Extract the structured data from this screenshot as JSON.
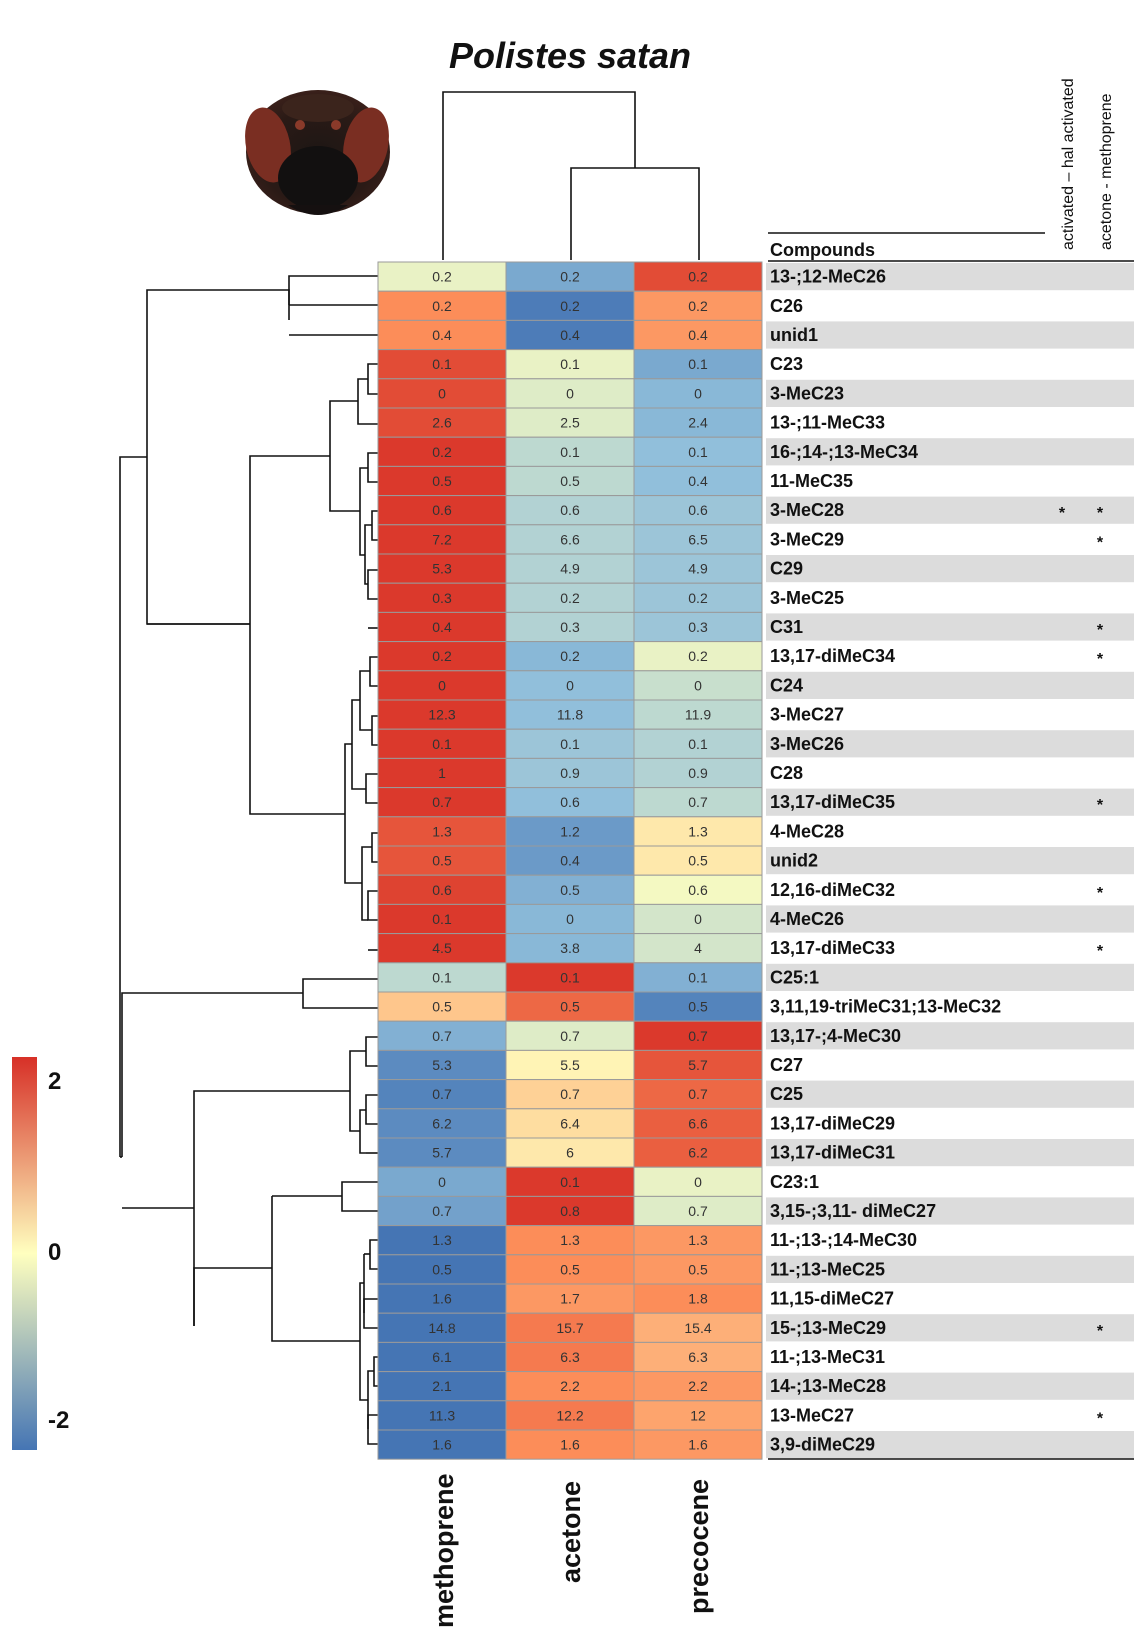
{
  "title": "Polistes satan",
  "compounds_header": "Compounds",
  "significance_headers": [
    "activated – hal activated",
    "acetone - methoprene"
  ],
  "legend": {
    "max_label": "2",
    "mid_label": "0",
    "min_label": "-2",
    "high_color": "#d73027",
    "mid_color": "#ffffbf",
    "low_color": "#4575b4"
  },
  "image": {
    "icon": "wasp-head-icon"
  },
  "chart_data": {
    "type": "heatmap",
    "title": "Polistes satan",
    "columns": [
      "methoprene",
      "acetone",
      "precocene"
    ],
    "row_header": "Compounds",
    "color_scale": {
      "min": -2,
      "max": 2,
      "colors": [
        "#4575b4",
        "#ffffbf",
        "#d73027"
      ]
    },
    "rows": [
      {
        "compound": "13-;12-MeC26",
        "values": [
          "0.2",
          "0.2",
          "0.2"
        ],
        "z": [
          -0.2,
          -1.3,
          1.7
        ],
        "sig": [
          "",
          ""
        ]
      },
      {
        "compound": "C26",
        "values": [
          "0.2",
          "0.2",
          "0.2"
        ],
        "z": [
          1.0,
          -1.9,
          0.9
        ],
        "sig": [
          "",
          ""
        ]
      },
      {
        "compound": "unid1",
        "values": [
          "0.4",
          "0.4",
          "0.4"
        ],
        "z": [
          1.0,
          -1.9,
          0.9
        ],
        "sig": [
          "",
          ""
        ]
      },
      {
        "compound": "C23",
        "values": [
          "0.1",
          "0.1",
          "0.1"
        ],
        "z": [
          1.7,
          -0.2,
          -1.3
        ],
        "sig": [
          "",
          ""
        ]
      },
      {
        "compound": "3-MeC23",
        "values": [
          "0",
          "0",
          "0"
        ],
        "z": [
          1.7,
          -0.3,
          -1.1
        ],
        "sig": [
          "",
          ""
        ]
      },
      {
        "compound": "13-;11-MeC33",
        "values": [
          "2.6",
          "2.5",
          "2.4"
        ],
        "z": [
          1.7,
          -0.3,
          -1.1
        ],
        "sig": [
          "",
          ""
        ]
      },
      {
        "compound": "16-;14-;13-MeC34",
        "values": [
          "0.2",
          "0.1",
          "0.1"
        ],
        "z": [
          1.9,
          -0.6,
          -1.0
        ],
        "sig": [
          "",
          ""
        ]
      },
      {
        "compound": "11-MeC35",
        "values": [
          "0.5",
          "0.5",
          "0.4"
        ],
        "z": [
          1.9,
          -0.6,
          -1.0
        ],
        "sig": [
          "",
          ""
        ]
      },
      {
        "compound": "3-MeC28",
        "values": [
          "0.6",
          "0.6",
          "0.6"
        ],
        "z": [
          1.9,
          -0.7,
          -0.9
        ],
        "sig": [
          "*",
          "*"
        ]
      },
      {
        "compound": "3-MeC29",
        "values": [
          "7.2",
          "6.6",
          "6.5"
        ],
        "z": [
          1.9,
          -0.7,
          -0.9
        ],
        "sig": [
          "",
          "*"
        ]
      },
      {
        "compound": "C29",
        "values": [
          "5.3",
          "4.9",
          "4.9"
        ],
        "z": [
          1.9,
          -0.7,
          -0.9
        ],
        "sig": [
          "",
          ""
        ]
      },
      {
        "compound": "3-MeC25",
        "values": [
          "0.3",
          "0.2",
          "0.2"
        ],
        "z": [
          1.9,
          -0.7,
          -0.9
        ],
        "sig": [
          "",
          ""
        ]
      },
      {
        "compound": "C31",
        "values": [
          "0.4",
          "0.3",
          "0.3"
        ],
        "z": [
          1.9,
          -0.7,
          -0.9
        ],
        "sig": [
          "",
          "*"
        ]
      },
      {
        "compound": "13,17-diMeC34",
        "values": [
          "0.2",
          "0.2",
          "0.2"
        ],
        "z": [
          1.9,
          -1.1,
          -0.2
        ],
        "sig": [
          "",
          "*"
        ]
      },
      {
        "compound": "C24",
        "values": [
          "0",
          "0",
          "0"
        ],
        "z": [
          1.9,
          -1.0,
          -0.5
        ],
        "sig": [
          "",
          ""
        ]
      },
      {
        "compound": "3-MeC27",
        "values": [
          "12.3",
          "11.8",
          "11.9"
        ],
        "z": [
          1.9,
          -1.0,
          -0.6
        ],
        "sig": [
          "",
          ""
        ]
      },
      {
        "compound": "3-MeC26",
        "values": [
          "0.1",
          "0.1",
          "0.1"
        ],
        "z": [
          1.9,
          -0.9,
          -0.7
        ],
        "sig": [
          "",
          ""
        ]
      },
      {
        "compound": "C28",
        "values": [
          "1",
          "0.9",
          "0.9"
        ],
        "z": [
          1.9,
          -0.9,
          -0.7
        ],
        "sig": [
          "",
          ""
        ]
      },
      {
        "compound": "13,17-diMeC35",
        "values": [
          "0.7",
          "0.6",
          "0.7"
        ],
        "z": [
          1.9,
          -1.0,
          -0.6
        ],
        "sig": [
          "",
          "*"
        ]
      },
      {
        "compound": "4-MeC28",
        "values": [
          "1.3",
          "1.2",
          "1.3"
        ],
        "z": [
          1.6,
          -1.5,
          0.2
        ],
        "sig": [
          "",
          ""
        ]
      },
      {
        "compound": "unid2",
        "values": [
          "0.5",
          "0.4",
          "0.5"
        ],
        "z": [
          1.6,
          -1.5,
          0.2
        ],
        "sig": [
          "",
          ""
        ]
      },
      {
        "compound": "12,16-diMeC32",
        "values": [
          "0.6",
          "0.5",
          "0.6"
        ],
        "z": [
          1.8,
          -1.2,
          -0.1
        ],
        "sig": [
          "",
          "*"
        ]
      },
      {
        "compound": "4-MeC26",
        "values": [
          "0.1",
          "0",
          "0"
        ],
        "z": [
          1.9,
          -1.1,
          -0.4
        ],
        "sig": [
          "",
          ""
        ]
      },
      {
        "compound": "13,17-diMeC33",
        "values": [
          "4.5",
          "3.8",
          "4"
        ],
        "z": [
          1.9,
          -1.1,
          -0.4
        ],
        "sig": [
          "",
          "*"
        ]
      },
      {
        "compound": "C25:1",
        "values": [
          "0.1",
          "0.1",
          "0.1"
        ],
        "z": [
          -0.6,
          1.9,
          -1.2
        ],
        "sig": [
          "",
          ""
        ]
      },
      {
        "compound": "3,11,19-triMeC31;13-MeC32",
        "values": [
          "0.5",
          "0.5",
          "0.5"
        ],
        "z": [
          0.5,
          1.4,
          -1.8
        ],
        "sig": [
          "",
          ""
        ]
      },
      {
        "compound": "13,17-;4-MeC30",
        "values": [
          "0.7",
          "0.7",
          "0.7"
        ],
        "z": [
          -1.2,
          -0.3,
          1.9
        ],
        "sig": [
          "",
          ""
        ]
      },
      {
        "compound": "C27",
        "values": [
          "5.3",
          "5.5",
          "5.7"
        ],
        "z": [
          -1.7,
          0.1,
          1.6
        ],
        "sig": [
          "",
          ""
        ]
      },
      {
        "compound": "C25",
        "values": [
          "0.7",
          "0.7",
          "0.7"
        ],
        "z": [
          -1.8,
          0.4,
          1.4
        ],
        "sig": [
          "",
          ""
        ]
      },
      {
        "compound": "13,17-diMeC29",
        "values": [
          "6.2",
          "6.4",
          "6.6"
        ],
        "z": [
          -1.7,
          0.3,
          1.5
        ],
        "sig": [
          "",
          ""
        ]
      },
      {
        "compound": "13,17-diMeC31",
        "values": [
          "5.7",
          "6",
          "6.2"
        ],
        "z": [
          -1.7,
          0.2,
          1.5
        ],
        "sig": [
          "",
          ""
        ]
      },
      {
        "compound": "C23:1",
        "values": [
          "0",
          "0.1",
          "0"
        ],
        "z": [
          -1.3,
          1.9,
          -0.2
        ],
        "sig": [
          "",
          ""
        ]
      },
      {
        "compound": "3,15-;3,11- diMeC27",
        "values": [
          "0.7",
          "0.8",
          "0.7"
        ],
        "z": [
          -1.4,
          1.9,
          -0.3
        ],
        "sig": [
          "",
          ""
        ]
      },
      {
        "compound": "11-;13-;14-MeC30",
        "values": [
          "1.3",
          "1.3",
          "1.3"
        ],
        "z": [
          -2.0,
          1.0,
          0.9
        ],
        "sig": [
          "",
          ""
        ]
      },
      {
        "compound": "11-;13-MeC25",
        "values": [
          "0.5",
          "0.5",
          "0.5"
        ],
        "z": [
          -2.0,
          1.0,
          0.9
        ],
        "sig": [
          "",
          ""
        ]
      },
      {
        "compound": "11,15-diMeC27",
        "values": [
          "1.6",
          "1.7",
          "1.8"
        ],
        "z": [
          -2.0,
          0.9,
          1.0
        ],
        "sig": [
          "",
          ""
        ]
      },
      {
        "compound": "15-;13-MeC29",
        "values": [
          "14.8",
          "15.7",
          "15.4"
        ],
        "z": [
          -2.0,
          1.2,
          0.7
        ],
        "sig": [
          "",
          "*"
        ]
      },
      {
        "compound": "11-;13-MeC31",
        "values": [
          "6.1",
          "6.3",
          "6.3"
        ],
        "z": [
          -2.0,
          1.2,
          0.7
        ],
        "sig": [
          "",
          ""
        ]
      },
      {
        "compound": "14-;13-MeC28",
        "values": [
          "2.1",
          "2.2",
          "2.2"
        ],
        "z": [
          -2.0,
          1.0,
          0.9
        ],
        "sig": [
          "",
          ""
        ]
      },
      {
        "compound": "13-MeC27",
        "values": [
          "11.3",
          "12.2",
          "12"
        ],
        "z": [
          -2.0,
          1.2,
          0.8
        ],
        "sig": [
          "",
          "*"
        ]
      },
      {
        "compound": "3,9-diMeC29",
        "values": [
          "1.6",
          "1.6",
          "1.6"
        ],
        "z": [
          -2.0,
          1.0,
          0.9
        ],
        "sig": [
          "",
          ""
        ]
      }
    ]
  }
}
